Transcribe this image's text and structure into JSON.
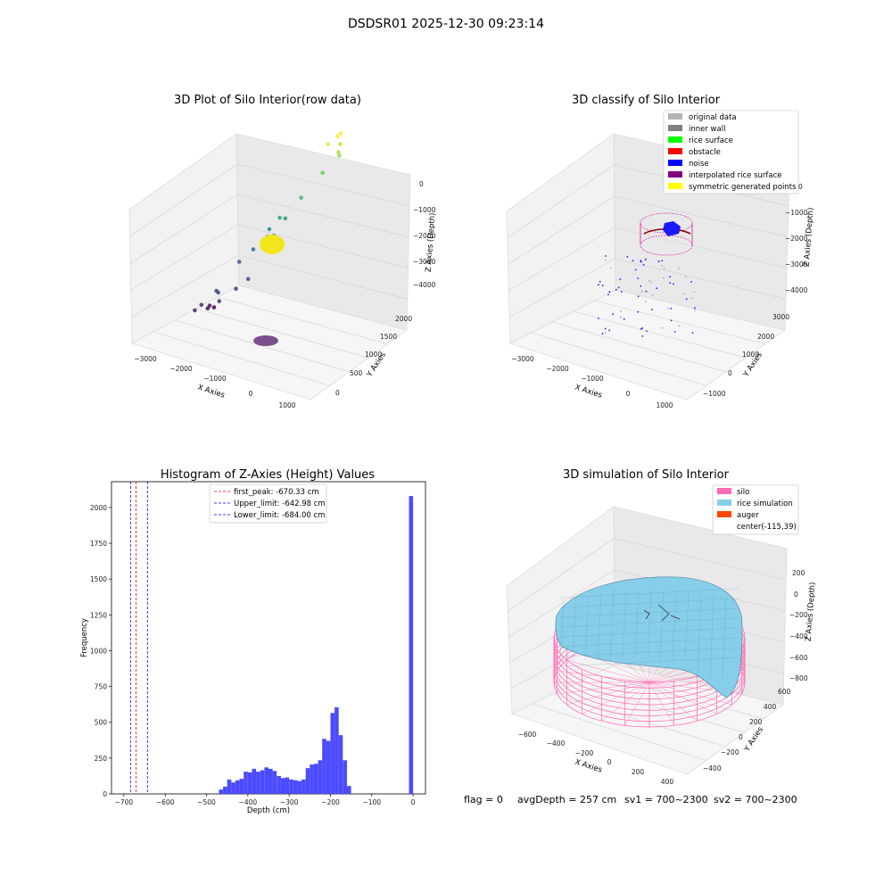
{
  "suptitle": "DSDSR01 2025-12-30 09:23:14",
  "footer": {
    "flag": "flag = 0",
    "avg_depth": "avgDepth = 257 cm",
    "sv1": "sv1 = 700~2300",
    "sv2": "sv2 = 700~2300"
  },
  "chart_data": [
    {
      "type": "scatter",
      "title": "3D Plot of Silo Interior(row data)",
      "xlabel": "X Axies",
      "ylabel": "Y Axies",
      "zlabel": "Z Axies (Depth)",
      "x_ticks": [
        "−3000",
        "−2000",
        "−1000",
        "0",
        "1000"
      ],
      "y_ticks": [
        "0",
        "500",
        "1000",
        "1500",
        "2000"
      ],
      "z_ticks": [
        "0",
        "−1000",
        "−2000",
        "−3000",
        "−4000"
      ],
      "series": [
        {
          "values": [
            [
              -2800,
              1300,
              -4300
            ],
            [
              -2600,
              1000,
              -4200
            ],
            [
              -2300,
              800,
              -4100
            ],
            [
              -2200,
              400,
              -4000
            ],
            [
              -1900,
              300,
              -3900
            ],
            [
              -1700,
              500,
              -3800
            ],
            [
              -1500,
              300,
              -3700
            ],
            [
              -1300,
              200,
              -3900
            ],
            [
              -1100,
              400,
              -3800
            ],
            [
              -900,
              500,
              -3700
            ],
            [
              -2500,
              1600,
              -3600
            ],
            [
              -2000,
              1500,
              -3400
            ],
            [
              -1700,
              1700,
              -3300
            ],
            [
              -1500,
              1400,
              -3200
            ],
            [
              -1200,
              1200,
              -3000
            ],
            [
              -900,
              1300,
              -2900
            ],
            [
              -800,
              1100,
              -2800
            ],
            [
              -600,
              1400,
              -2600
            ],
            [
              -400,
              1700,
              -2300
            ],
            [
              -200,
              1900,
              -2100
            ],
            [
              -100,
              1800,
              -2000
            ],
            [
              -300,
              2000,
              -1900
            ],
            [
              -500,
              1900,
              -1800
            ],
            [
              -350,
              2050,
              -1700
            ],
            [
              -250,
              1900,
              -1700
            ]
          ]
        }
      ],
      "colormap": "viridis by depth (purple deep → yellow shallow)"
    },
    {
      "type": "scatter",
      "title": "3D classify of Silo Interior",
      "xlabel": "X Axies",
      "ylabel": "Y Axies",
      "zlabel": "Z Axies (Depth)",
      "x_ticks": [
        "−3000",
        "−2000",
        "−1000",
        "0",
        "1000"
      ],
      "y_ticks": [
        "−1000",
        "0",
        "1000",
        "2000",
        "3000"
      ],
      "z_ticks": [
        "0",
        "−1000",
        "−2000",
        "−3000",
        "−4000"
      ],
      "legend_position": "top-right",
      "legend": [
        {
          "label": "original data",
          "color": "#b3b3b3"
        },
        {
          "label": "inner wall",
          "color": "#808080"
        },
        {
          "label": "rice surface",
          "color": "#00ff00"
        },
        {
          "label": "obstacle",
          "color": "#ff0000"
        },
        {
          "label": "noise",
          "color": "#0000ff"
        },
        {
          "label": "interpolated rice surface",
          "color": "#800080"
        },
        {
          "label": "symmetric generated points",
          "color": "#ffff00"
        }
      ]
    },
    {
      "type": "bar",
      "title": "Histogram of Z-Axies (Height) Values",
      "xlabel": "Depth (cm)",
      "ylabel": "Frequency",
      "x_ticks": [
        "−700",
        "−600",
        "−500",
        "−400",
        "−300",
        "−200",
        "−100",
        "0"
      ],
      "y_ticks": [
        "0",
        "250",
        "500",
        "750",
        "1000",
        "1250",
        "1500",
        "1750",
        "2000"
      ],
      "xlim": [
        -730,
        30
      ],
      "ylim": [
        0,
        2180
      ],
      "bin_width": 10,
      "bars": [
        {
          "x": -470,
          "v": 30
        },
        {
          "x": -460,
          "v": 50
        },
        {
          "x": -450,
          "v": 100
        },
        {
          "x": -440,
          "v": 80
        },
        {
          "x": -430,
          "v": 95
        },
        {
          "x": -420,
          "v": 105
        },
        {
          "x": -410,
          "v": 155
        },
        {
          "x": -400,
          "v": 150
        },
        {
          "x": -390,
          "v": 175
        },
        {
          "x": -380,
          "v": 155
        },
        {
          "x": -370,
          "v": 165
        },
        {
          "x": -360,
          "v": 185
        },
        {
          "x": -350,
          "v": 175
        },
        {
          "x": -340,
          "v": 160
        },
        {
          "x": -330,
          "v": 125
        },
        {
          "x": -320,
          "v": 110
        },
        {
          "x": -310,
          "v": 115
        },
        {
          "x": -300,
          "v": 100
        },
        {
          "x": -290,
          "v": 95
        },
        {
          "x": -280,
          "v": 90
        },
        {
          "x": -270,
          "v": 100
        },
        {
          "x": -260,
          "v": 180
        },
        {
          "x": -250,
          "v": 205
        },
        {
          "x": -240,
          "v": 210
        },
        {
          "x": -230,
          "v": 235
        },
        {
          "x": -220,
          "v": 385
        },
        {
          "x": -210,
          "v": 370
        },
        {
          "x": -200,
          "v": 565
        },
        {
          "x": -190,
          "v": 605
        },
        {
          "x": -180,
          "v": 410
        },
        {
          "x": -170,
          "v": 235
        },
        {
          "x": -160,
          "v": 55
        },
        {
          "x": -10,
          "v": 2080
        }
      ],
      "legend_position": "top-center",
      "vlines": [
        {
          "label": "first_peak: -670.33 cm",
          "x": -670.33,
          "color": "#ff0000"
        },
        {
          "label": "Upper_limit: -642.98 cm",
          "x": -642.98,
          "color": "#0000ff"
        },
        {
          "label": "Lower_limit: -684.00 cm",
          "x": -684.0,
          "color": "#0000ff"
        }
      ]
    },
    {
      "type": "area",
      "title": "3D simulation of Silo Interior",
      "xlabel": "X Axies",
      "ylabel": "Y Axies",
      "zlabel": "Z Axies (Depth)",
      "x_ticks": [
        "−600",
        "−400",
        "−200",
        "0",
        "200",
        "400"
      ],
      "y_ticks": [
        "−400",
        "−200",
        "0",
        "200",
        "400",
        "600"
      ],
      "z_ticks": [
        "200",
        "0",
        "−200",
        "−400",
        "−600",
        "−800"
      ],
      "legend_position": "top-right",
      "legend": [
        {
          "label": "silo",
          "color": "#ff69b4"
        },
        {
          "label": "rice simulation",
          "color": "#87ceeb"
        },
        {
          "label": "auger",
          "color": "#ff4500"
        },
        {
          "label": "center(-115,39)",
          "color": ""
        }
      ]
    }
  ]
}
